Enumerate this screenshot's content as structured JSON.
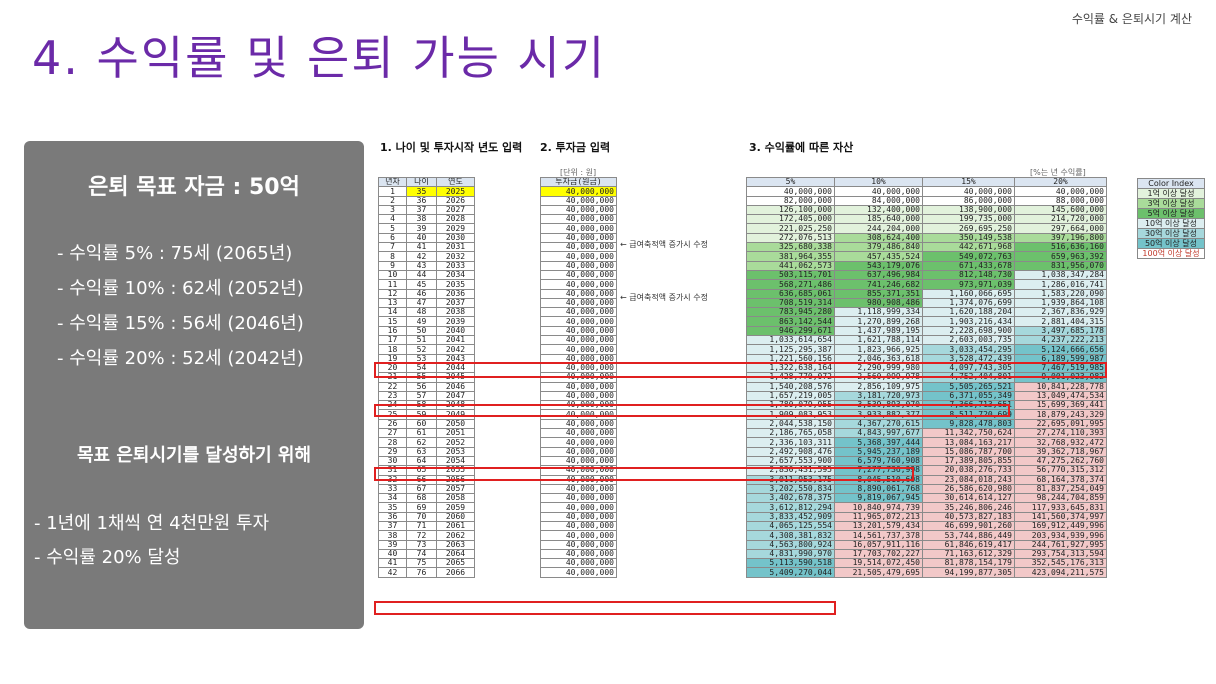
{
  "header_note": "수익률 & 은퇴시기 계산",
  "title": "4. 수익률 및 은퇴 가능 시기",
  "panel": {
    "goal": "은퇴 목표 자금 : 50억",
    "rates": [
      "- 수익률  5% : 75세 (2065년)",
      "- 수익률 10% : 62세 (2052년)",
      "- 수익률 15% : 56세 (2046년)",
      "- 수익률 20% : 52세 (2042년)"
    ],
    "subtitle": "목표 은퇴시기를 달성하기 위해",
    "tips": [
      "- 1년에 1채씩 연 4천만원 투자",
      "- 수익률 20% 달성"
    ]
  },
  "sections": {
    "s1": "1. 나이 및 투자시작 년도 입력",
    "s2": "2. 투자금 입력",
    "s3": "3. 수익률에 따른 자산"
  },
  "units": {
    "investment": "[단위 : 원]",
    "rate": "[%는 년 수익률]"
  },
  "headers": {
    "left": [
      "년차",
      "나이",
      "연도"
    ],
    "invest": "투자금(원금)",
    "rates": [
      "5%",
      "10%",
      "15%",
      "20%"
    ]
  },
  "notes": [
    "← 급여축적액 증가시 수정",
    "← 급여축적액 증가시 수정"
  ],
  "legend": {
    "title": "Color Index",
    "items": [
      {
        "label": "1억 이상 달성",
        "color": "#e2f2dc"
      },
      {
        "label": "3억 이상 달성",
        "color": "#a9db9a"
      },
      {
        "label": "5억 이상 달성",
        "color": "#6cc06c"
      },
      {
        "label": "10억 이상 달성",
        "color": "#dceef0"
      },
      {
        "label": "30억 이상 달성",
        "color": "#a6d8dc"
      },
      {
        "label": "50억 이상 달성",
        "color": "#74c3ca"
      },
      {
        "label": "100억 이상 달성",
        "color": "#f2c8c8"
      }
    ]
  },
  "table": {
    "ages": [
      35,
      36,
      37,
      38,
      39,
      40,
      41,
      42,
      43,
      44,
      45,
      46,
      47,
      48,
      49,
      50,
      51,
      52,
      53,
      54,
      55,
      56,
      57,
      58,
      59,
      60,
      61,
      62,
      63,
      64,
      65,
      66,
      67,
      68,
      69,
      70,
      71,
      72,
      73,
      74,
      75,
      76
    ],
    "years": [
      2025,
      2026,
      2027,
      2028,
      2029,
      2030,
      2031,
      2032,
      2033,
      2034,
      2035,
      2036,
      2037,
      2038,
      2039,
      2040,
      2041,
      2042,
      2043,
      2044,
      2045,
      2046,
      2047,
      2048,
      2049,
      2050,
      2051,
      2052,
      2053,
      2054,
      2055,
      2056,
      2057,
      2058,
      2059,
      2060,
      2061,
      2062,
      2063,
      2064,
      2065,
      2066
    ],
    "investment": "40,000,000",
    "r5": [
      "40,000,000",
      "82,000,000",
      "126,100,000",
      "172,405,000",
      "221,025,250",
      "272,076,513",
      "325,680,338",
      "381,964,355",
      "441,062,573",
      "503,115,701",
      "568,271,486",
      "636,685,061",
      "708,519,314",
      "783,945,280",
      "863,142,544",
      "946,299,671",
      "1,033,614,654",
      "1,125,295,387",
      "1,221,560,156",
      "1,322,638,164",
      "1,428,770,072",
      "1,540,208,576",
      "1,657,219,005",
      "1,780,079,955",
      "1,909,083,953",
      "2,044,538,150",
      "2,186,765,058",
      "2,336,103,311",
      "2,492,908,476",
      "2,657,553,900",
      "2,830,431,595",
      "3,011,953,175",
      "3,202,550,834",
      "3,402,678,375",
      "3,612,812,294",
      "3,833,452,909",
      "4,065,125,554",
      "4,308,381,832",
      "4,563,800,924",
      "4,831,990,970",
      "5,113,590,518",
      "5,409,270,044"
    ],
    "r10": [
      "40,000,000",
      "84,000,000",
      "132,400,000",
      "185,640,000",
      "244,204,000",
      "308,624,400",
      "379,486,840",
      "457,435,524",
      "543,179,076",
      "637,496,984",
      "741,246,682",
      "855,371,351",
      "980,908,486",
      "1,118,999,334",
      "1,270,899,268",
      "1,437,989,195",
      "1,621,788,114",
      "1,823,966,925",
      "2,046,363,618",
      "2,290,999,980",
      "2,560,099,978",
      "2,856,109,975",
      "3,181,720,973",
      "3,539,893,070",
      "3,933,882,377",
      "4,367,270,615",
      "4,843,997,677",
      "5,368,397,444",
      "5,945,237,189",
      "6,579,760,908",
      "7,277,736,998",
      "8,045,510,698",
      "8,890,061,768",
      "9,819,067,945",
      "10,840,974,739",
      "11,965,072,213",
      "13,201,579,434",
      "14,561,737,378",
      "16,057,911,116",
      "17,703,702,227",
      "19,514,072,450",
      "21,505,479,695"
    ],
    "r15": [
      "40,000,000",
      "86,000,000",
      "138,900,000",
      "199,735,000",
      "269,695,250",
      "350,149,538",
      "442,671,968",
      "549,072,763",
      "671,433,678",
      "812,148,730",
      "973,971,039",
      "1,160,066,695",
      "1,374,076,699",
      "1,620,188,204",
      "1,903,216,434",
      "2,228,698,900",
      "2,603,003,735",
      "3,033,454,295",
      "3,528,472,439",
      "4,097,743,305",
      "4,752,404,801",
      "5,505,265,521",
      "6,371,055,349",
      "7,366,713,651",
      "8,511,720,699",
      "9,828,478,803",
      "11,342,750,624",
      "13,084,163,217",
      "15,086,787,700",
      "17,389,805,855",
      "20,038,276,733",
      "23,084,018,243",
      "26,586,620,980",
      "30,614,614,127",
      "35,246,806,246",
      "40,573,827,183",
      "46,699,901,260",
      "53,744,886,449",
      "61,846,619,417",
      "71,163,612,329",
      "81,878,154,179",
      "94,199,877,305"
    ],
    "r20": [
      "40,000,000",
      "88,000,000",
      "145,600,000",
      "214,720,000",
      "297,664,000",
      "397,196,800",
      "516,636,160",
      "659,963,392",
      "831,956,070",
      "1,038,347,284",
      "1,286,016,741",
      "1,583,220,090",
      "1,939,864,108",
      "2,367,836,929",
      "2,881,404,315",
      "3,497,685,178",
      "4,237,222,213",
      "5,124,666,656",
      "6,189,599,987",
      "7,467,519,985",
      "9,001,023,982",
      "10,841,228,778",
      "13,049,474,534",
      "15,699,369,441",
      "18,879,243,329",
      "22,695,091,995",
      "27,274,110,393",
      "32,768,932,472",
      "39,362,718,967",
      "47,275,262,760",
      "56,770,315,312",
      "68,164,378,374",
      "81,837,254,049",
      "98,244,704,859",
      "117,933,645,831",
      "141,560,374,997",
      "169,912,449,996",
      "203,934,939,996",
      "244,761,927,995",
      "293,754,313,594",
      "352,545,176,313",
      "423,094,211,575"
    ]
  }
}
